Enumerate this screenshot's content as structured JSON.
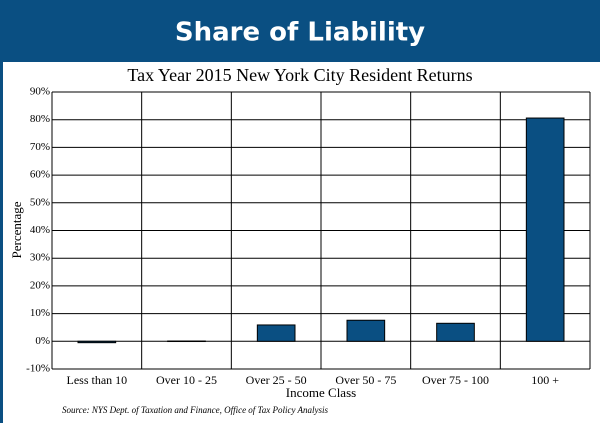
{
  "chart_data": {
    "type": "bar",
    "title": "Share of Liability",
    "subtitle": "Tax Year 2015 New York City Resident Returns",
    "x_label": "Income Class",
    "y_label": "Percentage",
    "source": "Source: NYS Dept. of Taxation and Finance, Office of Tax Policy Analysis",
    "categories": [
      "Less than 10",
      "Over 10 - 25",
      "Over 25 - 50",
      "Over 50 - 75",
      "Over 75 - 100",
      "100 +"
    ],
    "values": [
      -0.5,
      0.1,
      5.9,
      7.6,
      6.5,
      80.6
    ],
    "color": "#0a4f82",
    "ylim": [
      -10,
      90
    ],
    "yticks": [
      {
        "value": -10,
        "label": "-10%"
      },
      {
        "value": 0,
        "label": "0%"
      },
      {
        "value": 10,
        "label": "10%"
      },
      {
        "value": 20,
        "label": "20%"
      },
      {
        "value": 30,
        "label": "30%"
      },
      {
        "value": 40,
        "label": "40%"
      },
      {
        "value": 50,
        "label": "50%"
      },
      {
        "value": 60,
        "label": "60%"
      },
      {
        "value": 70,
        "label": "70%"
      },
      {
        "value": 80,
        "label": "80%"
      },
      {
        "value": 90,
        "label": "90%"
      }
    ],
    "grid": true
  }
}
